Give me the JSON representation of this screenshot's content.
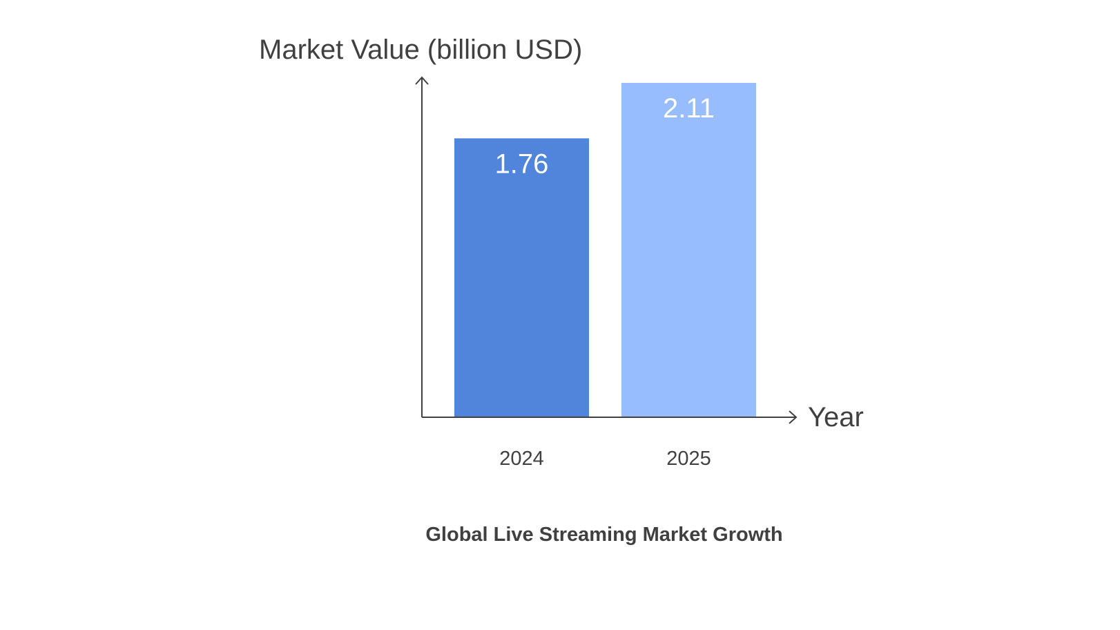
{
  "chart_data": {
    "type": "bar",
    "title": "Global Live Streaming Market Growth",
    "xlabel": "Year",
    "ylabel": "Market Value (billion USD)",
    "categories": [
      "2024",
      "2025"
    ],
    "values": [
      1.76,
      2.11
    ],
    "data_labels": [
      "1.76",
      "2.11"
    ],
    "ylim": [
      0,
      2.11
    ],
    "grid": false,
    "legend": "none",
    "colors": [
      "#5184DB",
      "#98BDFF"
    ],
    "axis_color": "#404040"
  }
}
